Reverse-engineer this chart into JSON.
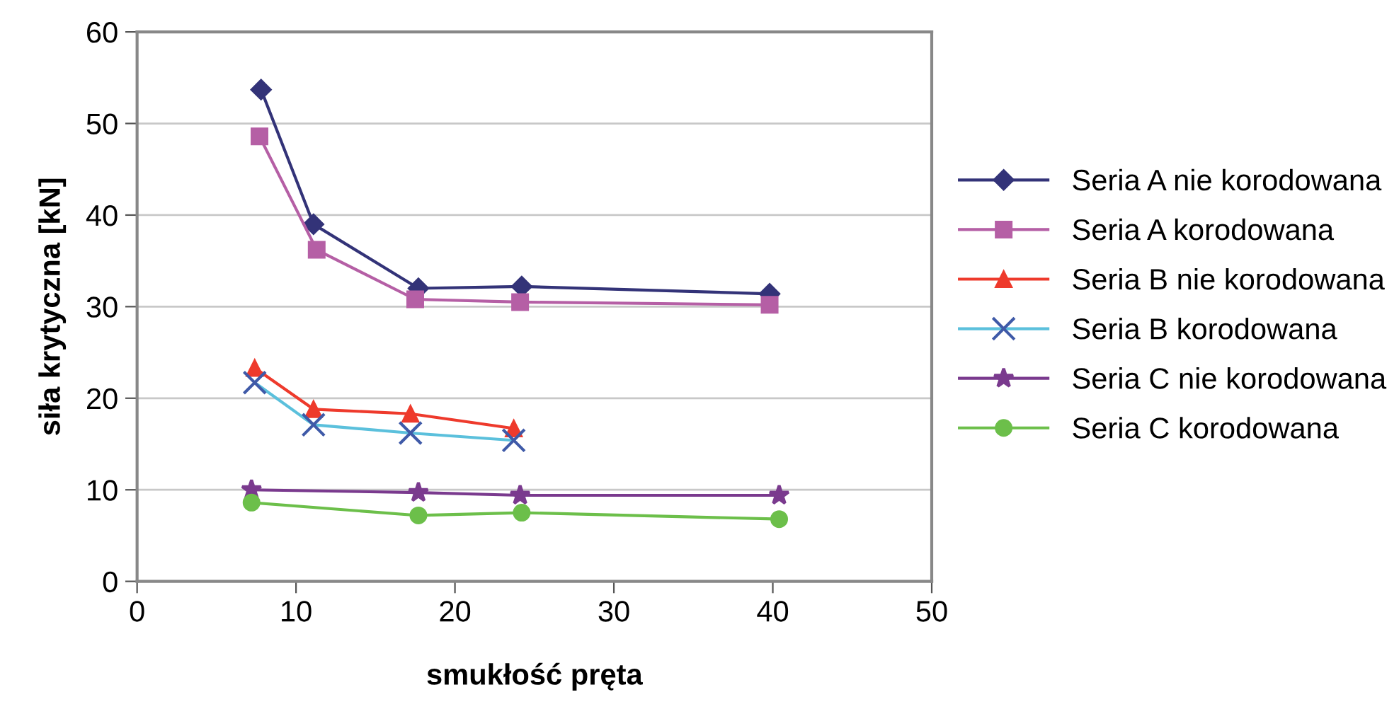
{
  "chart_data": {
    "type": "line",
    "xlabel": "smukłość pręta",
    "ylabel": "siła krytyczna [kN]",
    "xlim": [
      0,
      50
    ],
    "xticks": [
      0,
      10,
      20,
      30,
      40,
      50
    ],
    "ylim": [
      0,
      60
    ],
    "yticks": [
      0,
      10,
      20,
      30,
      40,
      50,
      60
    ],
    "grid": "y",
    "legend": "right",
    "series": [
      {
        "name": "Seria A nie korodowana",
        "color": "#333378",
        "marker": "diamond",
        "x": [
          7.8,
          11.1,
          17.7,
          24.2,
          39.8
        ],
        "values": [
          53.7,
          39.0,
          32.0,
          32.2,
          31.4
        ]
      },
      {
        "name": "Seria A korodowana",
        "color": "#b55fa5",
        "marker": "square",
        "x": [
          7.7,
          11.3,
          17.5,
          24.1,
          39.8
        ],
        "values": [
          48.6,
          36.2,
          30.8,
          30.5,
          30.2
        ]
      },
      {
        "name": "Seria B nie korodowana",
        "color": "#ee3a2c",
        "marker": "triangle",
        "x": [
          7.4,
          11.1,
          17.2,
          23.7
        ],
        "values": [
          23.3,
          18.8,
          18.3,
          16.7
        ]
      },
      {
        "name": "Seria B korodowana",
        "color": "#5bc0dc",
        "marker": "cross",
        "x": [
          7.4,
          11.1,
          17.2,
          23.7
        ],
        "values": [
          21.7,
          17.1,
          16.2,
          15.4
        ]
      },
      {
        "name": "Seria C nie korodowana",
        "color": "#7a3a8e",
        "marker": "star",
        "x": [
          7.2,
          17.7,
          24.1,
          40.4
        ],
        "values": [
          10.0,
          9.7,
          9.4,
          9.4
        ]
      },
      {
        "name": "Seria C korodowana",
        "color": "#6cbf4a",
        "marker": "circle",
        "x": [
          7.2,
          17.7,
          24.2,
          40.4
        ],
        "values": [
          8.6,
          7.2,
          7.5,
          6.8
        ]
      }
    ]
  }
}
